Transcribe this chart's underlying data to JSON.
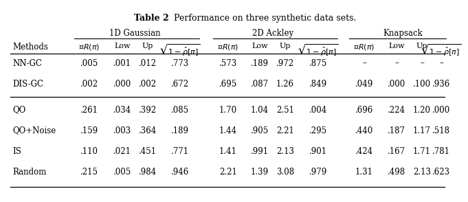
{
  "title_part1": "Table 2",
  "title_part2": "Performance on three synthetic data sets.",
  "methods": [
    "NN-GC",
    "DIS-GC",
    "QO",
    "QO+Noise",
    "IS",
    "Random"
  ],
  "group_headers": [
    "1D Gaussian",
    "2D Ackley",
    "Knapsack"
  ],
  "data": {
    "1D Gaussian": [
      [
        ".005",
        ".001",
        ".012",
        ".773"
      ],
      [
        ".002",
        ".000",
        ".002",
        ".672"
      ],
      [
        ".261",
        ".034",
        ".392",
        ".085"
      ],
      [
        ".159",
        ".003",
        ".364",
        ".189"
      ],
      [
        ".110",
        ".021",
        ".451",
        ".771"
      ],
      [
        ".215",
        ".005",
        ".984",
        ".946"
      ]
    ],
    "2D Ackley": [
      [
        ".573",
        ".189",
        ".972",
        ".875"
      ],
      [
        ".695",
        ".087",
        "1.26",
        ".849"
      ],
      [
        "1.70",
        "1.04",
        "2.51",
        ".004"
      ],
      [
        "1.44",
        ".905",
        "2.21",
        ".295"
      ],
      [
        "1.41",
        ".991",
        "2.13",
        ".901"
      ],
      [
        "2.21",
        "1.39",
        "3.08",
        ".979"
      ]
    ],
    "Knapsack": [
      [
        "–",
        "–",
        "–",
        "–"
      ],
      [
        ".049",
        ".000",
        ".100",
        ".936"
      ],
      [
        ".696",
        ".224",
        "1.20",
        ".000"
      ],
      [
        ".440",
        ".187",
        "1.17",
        ".518"
      ],
      [
        ".424",
        ".167",
        "1.71",
        ".781"
      ],
      [
        "1.31",
        ".498",
        "2.13",
        ".623"
      ]
    ]
  },
  "background_color": "#ffffff",
  "font_size": 8.5
}
